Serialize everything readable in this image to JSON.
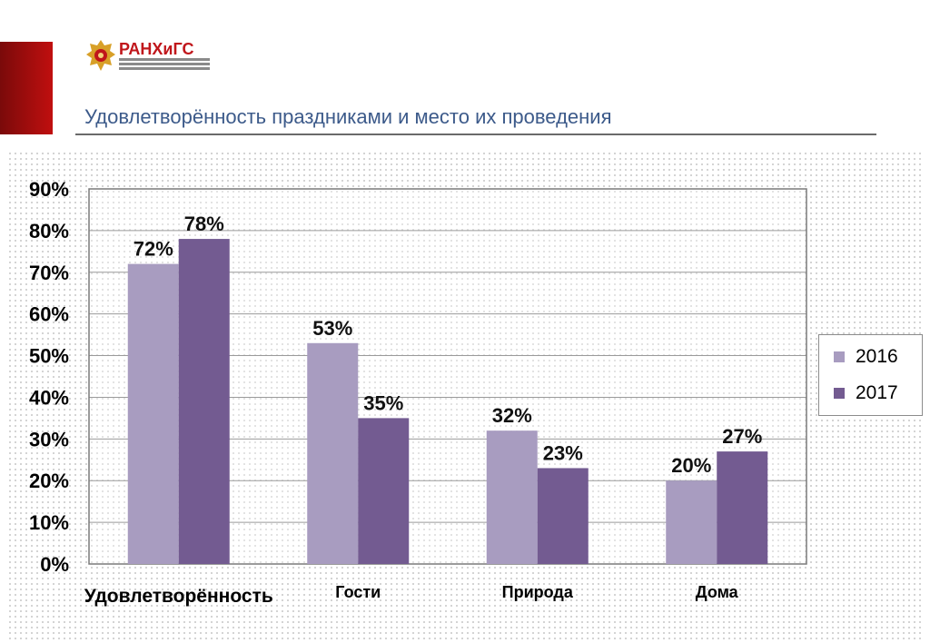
{
  "header": {
    "logo_text": "РАНХиГС",
    "logo_subtitle": "РОССИЙСКАЯ АКАДЕМИЯ НАРОДНОГО ХОЗЯЙСТВА И ГОСУДАРСТВЕННОЙ СЛУЖБЫ ПРИ ПРЕЗИДЕНТЕ РОССИЙСКОЙ ФЕДЕРАЦИИ",
    "title": "Удовлетворённость праздниками и место их проведения",
    "accent_color": "#b5121b",
    "title_color": "#3c5a8a"
  },
  "chart_data": {
    "type": "bar",
    "title": "",
    "xlabel": "",
    "ylabel": "",
    "categories": [
      "Удовлетворённость",
      "Гости",
      "Природа",
      "Дома"
    ],
    "series": [
      {
        "name": "2016",
        "values": [
          72,
          53,
          32,
          20
        ],
        "labels": [
          "72%",
          "53%",
          "32%",
          "20%"
        ],
        "color": "#a89cc0"
      },
      {
        "name": "2017",
        "values": [
          78,
          35,
          23,
          27
        ],
        "labels": [
          "78%",
          "35%",
          "23%",
          "27%"
        ],
        "color": "#735b91"
      }
    ],
    "ylim": [
      0,
      90
    ],
    "yticks": [
      {
        "value": 0,
        "label": "0%"
      },
      {
        "value": 10,
        "label": "10%"
      },
      {
        "value": 20,
        "label": "20%"
      },
      {
        "value": 30,
        "label": "30%"
      },
      {
        "value": 40,
        "label": "40%"
      },
      {
        "value": 50,
        "label": "50%"
      },
      {
        "value": 60,
        "label": "60%"
      },
      {
        "value": 70,
        "label": "70%"
      },
      {
        "value": 80,
        "label": "80%"
      },
      {
        "value": 90,
        "label": "90%"
      }
    ],
    "grid": true,
    "legend_position": "right"
  }
}
